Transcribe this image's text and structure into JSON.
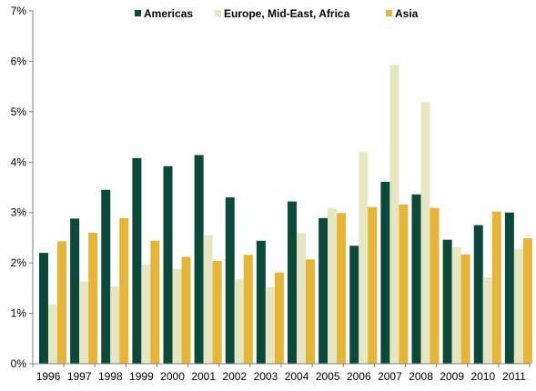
{
  "chart_data": {
    "type": "bar",
    "title": "",
    "xlabel": "",
    "ylabel": "",
    "categories": [
      "1996",
      "1997",
      "1998",
      "1999",
      "2000",
      "2001",
      "2002",
      "2003",
      "2004",
      "2005",
      "2006",
      "2007",
      "2008",
      "2009",
      "2010",
      "2011"
    ],
    "series": [
      {
        "name": "Americas",
        "color": "#0b4a3a",
        "values": [
          2.2,
          2.88,
          3.45,
          4.08,
          3.92,
          4.14,
          3.3,
          2.44,
          3.22,
          2.89,
          2.34,
          3.61,
          3.36,
          2.46,
          2.75,
          3.0
        ]
      },
      {
        "name": "Europe, Mid-East, Africa",
        "color": "#e6e6c3",
        "values": [
          1.18,
          1.63,
          1.53,
          1.97,
          1.88,
          2.55,
          1.67,
          1.52,
          2.59,
          3.09,
          4.2,
          5.93,
          5.19,
          2.31,
          1.71,
          2.28
        ]
      },
      {
        "name": "Asia",
        "color": "#e6b437",
        "values": [
          2.43,
          2.6,
          2.89,
          2.44,
          2.12,
          2.04,
          2.16,
          1.81,
          2.07,
          2.99,
          3.11,
          3.16,
          3.09,
          2.17,
          3.02,
          2.49
        ]
      }
    ],
    "ylim": [
      0,
      7
    ],
    "yticks": [
      0,
      1,
      2,
      3,
      4,
      5,
      6,
      7
    ],
    "ytick_labels": [
      "0%",
      "1%",
      "2%",
      "3%",
      "4%",
      "5%",
      "6%",
      "7%"
    ],
    "grid": false,
    "legend_position": "top"
  }
}
